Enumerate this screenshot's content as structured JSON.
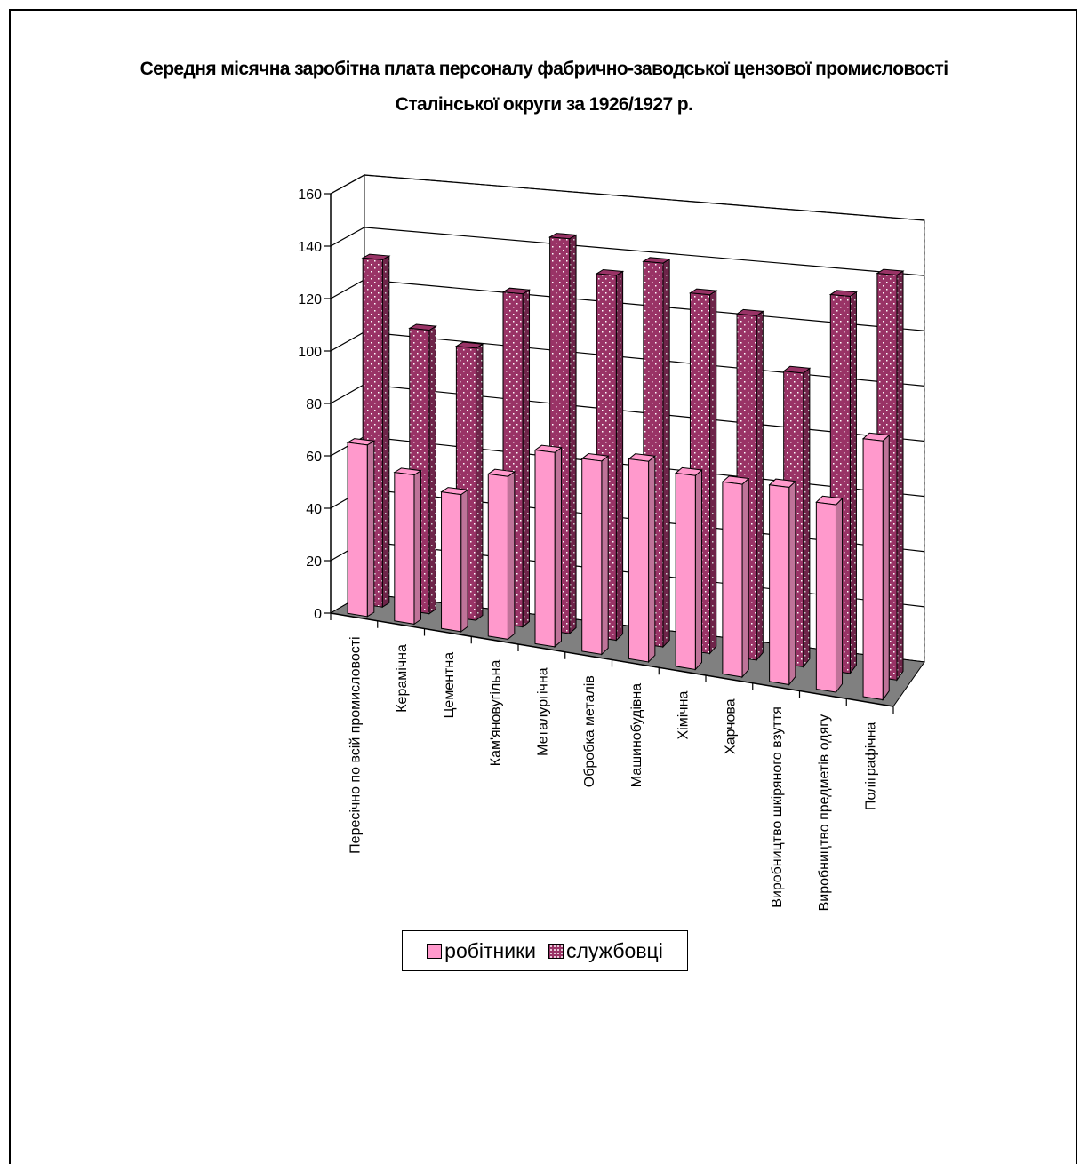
{
  "chart_data": {
    "type": "bar3d",
    "title": "Середня місячна заробітна плата персоналу фабрично-заводської цензової промисловості Сталінської округи за 1926/1927 р.",
    "categories": [
      "Пересічно по всій промисловості",
      "Керамічна",
      "Цементна",
      "Кам'яновугільна",
      "Металургічна",
      "Обробка металів",
      "Машинобудівна",
      "Хімічна",
      "Харчова",
      "Виробництво шкіряного взуття",
      "Виробництво предметів одягу",
      "Поліграфічна"
    ],
    "series": [
      {
        "name": "робітники",
        "color": "#ff99cc",
        "values": [
          65,
          56,
          51,
          60,
          71,
          70,
          72,
          69,
          68,
          69,
          65,
          89
        ]
      },
      {
        "name": "службовці",
        "color": "#993366",
        "pattern": "dots",
        "values": [
          132,
          107,
          102,
          124,
          146,
          134,
          140,
          130,
          124,
          105,
          134,
          143
        ]
      }
    ],
    "ylim": [
      0,
      160
    ],
    "yticks": [
      0,
      20,
      40,
      60,
      80,
      100,
      120,
      140,
      160
    ],
    "grid": true,
    "legend": "bottom"
  }
}
